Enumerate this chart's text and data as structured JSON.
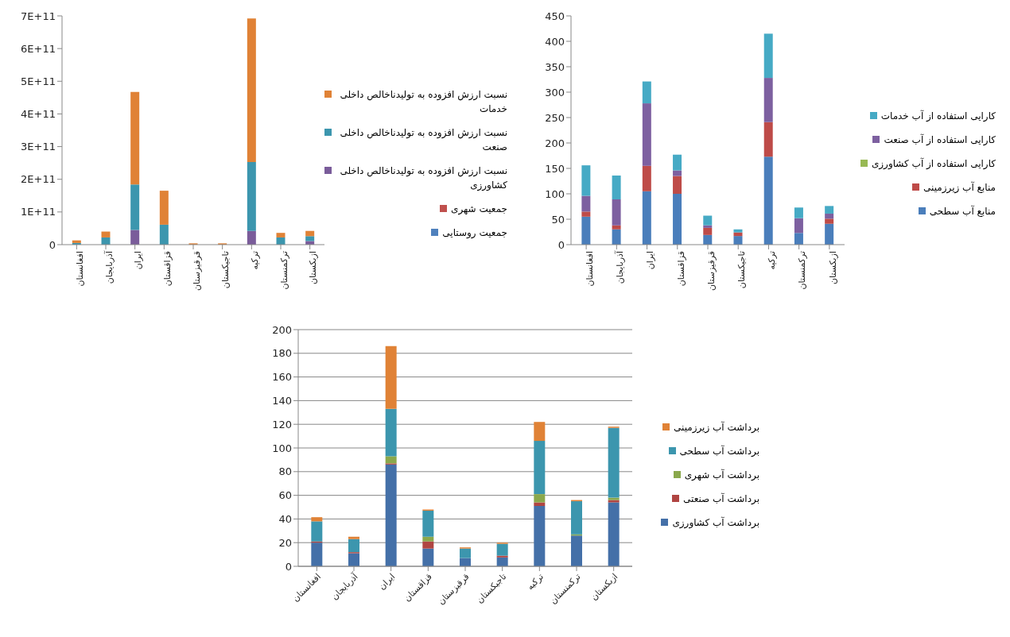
{
  "chart_data": [
    {
      "type": "bar",
      "stacked": true,
      "legend": "right",
      "grid": false,
      "categories": [
        "افغانستان",
        "آذربایجان",
        "ایران",
        "قزاقستان",
        "قرقیزستان",
        "تاجیکستان",
        "ترکیه",
        "ترکمنستان",
        "ازبکستان"
      ],
      "ylim": [
        0,
        700000000000
      ],
      "yticks": [
        0,
        {
          "value": 100000000000,
          "label": "1E+11"
        },
        {
          "value": 200000000000,
          "label": "2E+11"
        },
        {
          "value": 300000000000,
          "label": "3E+11"
        },
        {
          "value": 400000000000,
          "label": "4E+11"
        },
        {
          "value": 500000000000,
          "label": "5E+11"
        },
        {
          "value": 600000000000,
          "label": "6E+11"
        },
        {
          "value": 700000000000,
          "label": "7E+11"
        }
      ],
      "series": [
        {
          "name": "جمعیت روستایی",
          "color": "#4f81bd",
          "values": [
            0,
            0,
            0,
            0,
            0,
            0,
            0,
            0,
            0
          ]
        },
        {
          "name": "جمعیت شهری",
          "color": "#c0504d",
          "values": [
            0,
            0,
            0,
            0,
            0,
            0,
            0,
            0,
            0
          ]
        },
        {
          "name": "نسبت ارزش افزوده به تولیدناخالص داخلی کشاورزی",
          "color": "#7a5c9a",
          "values": [
            0,
            0,
            45000000000,
            0,
            0,
            0,
            42000000000,
            0,
            11000000000
          ]
        },
        {
          "name": "نسبت ارزش افزوده به تولیدناخالص داخلی صنعت",
          "color": "#3c96ae",
          "values": [
            5000000000,
            22000000000,
            139000000000,
            61000000000,
            0,
            0,
            211000000000,
            22000000000,
            15000000000
          ]
        },
        {
          "name": "نسبت ارزش افزوده به تولیدناخالص داخلی خدمات",
          "color": "#e08236",
          "values": [
            8000000000,
            18000000000,
            283000000000,
            104000000000,
            4000000000,
            4000000000,
            439000000000,
            14000000000,
            16000000000
          ]
        }
      ]
    },
    {
      "type": "bar",
      "stacked": true,
      "legend": "right",
      "grid": false,
      "categories": [
        "افغانستان",
        "آذربایجان",
        "ایران",
        "قزاقستان",
        "قرقیزستان",
        "تاجیکستان",
        "ترکیه",
        "ترکمنستان",
        "ازبکستان"
      ],
      "ylim": [
        0,
        450
      ],
      "yticks": [
        0,
        50,
        100,
        150,
        200,
        250,
        300,
        350,
        400,
        450
      ],
      "series": [
        {
          "name": "منابع آب سطحی",
          "color": "#4a7ebb",
          "values": [
            55,
            30,
            105,
            100,
            19,
            17,
            173,
            23,
            41
          ]
        },
        {
          "name": "منابع آب زیرزمینی",
          "color": "#be4b48",
          "values": [
            10,
            8,
            50,
            35,
            14,
            7,
            68,
            0,
            10
          ]
        },
        {
          "name": "کارایی استفاده از آب کشاورزی",
          "color": "#98b954",
          "values": [
            0,
            0,
            0,
            0,
            0,
            0,
            0,
            0,
            0
          ]
        },
        {
          "name": "کارایی استفاده از آب صنعت",
          "color": "#7d60a0",
          "values": [
            31,
            51,
            123,
            11,
            5,
            0,
            87,
            29,
            10
          ]
        },
        {
          "name": "کارایی استفاده از آب خدمات",
          "color": "#46aac5",
          "values": [
            60,
            47,
            43,
            31,
            19,
            6,
            87,
            21,
            15
          ]
        }
      ]
    },
    {
      "type": "bar",
      "stacked": true,
      "legend": "right",
      "grid": "y",
      "categories": [
        "افغانستان",
        "آذربایجان",
        "ایران",
        "قزاقستان",
        "قرقیزستان",
        "تاجیکستان",
        "ترکیه",
        "ترکمنستان",
        "ازبکستان"
      ],
      "ylim": [
        0,
        200
      ],
      "yticks": [
        0,
        20,
        40,
        60,
        80,
        100,
        120,
        140,
        160,
        180,
        200
      ],
      "series": [
        {
          "name": "برداشت آب کشاورزی",
          "color": "#4470a8",
          "values": [
            20,
            11,
            86,
            15,
            7,
            7.5,
            51,
            26,
            54
          ]
        },
        {
          "name": "برداشت آب صنعتی",
          "color": "#b04542",
          "values": [
            1,
            1,
            1,
            6,
            0,
            1.5,
            3,
            0,
            2
          ]
        },
        {
          "name": "برداشت آب شهری",
          "color": "#8aa84c",
          "values": [
            0,
            0,
            6,
            4,
            0,
            0,
            7,
            1,
            2
          ]
        },
        {
          "name": "برداشت آب سطحی",
          "color": "#3c96ae",
          "values": [
            17,
            11,
            40,
            22,
            8,
            10,
            45,
            28,
            59
          ]
        },
        {
          "name": "برداشت آب زیرزمینی",
          "color": "#e08236",
          "values": [
            3.5,
            2,
            53,
            1,
            1,
            1,
            16,
            1,
            1
          ]
        }
      ]
    }
  ]
}
